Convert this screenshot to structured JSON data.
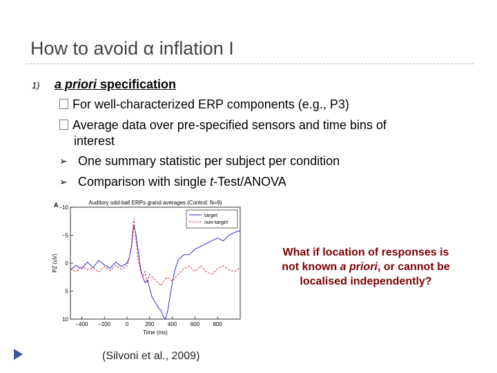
{
  "slide": {
    "title": "How to avoid α inflation I",
    "list_number": "1)",
    "heading_italic": "a priori",
    "heading_rest": " specification",
    "sub_bullet_1": "For well-characterized ERP components (e.g., P3)",
    "sub_bullet_2_line1": "Average data over pre-specified sensors and time bins of",
    "sub_bullet_2_line2": "interest",
    "arrow_bullet_1": "One summary statistic per subject per condition",
    "arrow_bullet_2_pre": "Comparison with single ",
    "arrow_bullet_2_ital": "t",
    "arrow_bullet_2_post": "-Test/ANOVA",
    "callout_line1": "What if location of responses is",
    "callout_line2_pre": "not known ",
    "callout_line2_ital": "a priori",
    "callout_line2_post": ", or cannot be",
    "callout_line3": "localised independently?",
    "citation": "(Silvoni et al., 2009)"
  },
  "chart_data": {
    "type": "line",
    "panel_label": "A",
    "title": "Auditory odd-ball ERPs grand averages (Control: N=9)",
    "xlabel": "Time (ms)",
    "ylabel": "PZ (uV)",
    "xlim": [
      -500,
      1000
    ],
    "ylim": [
      -10,
      10
    ],
    "y_inverted": true,
    "xticks": [
      -400,
      -200,
      0,
      200,
      400,
      600,
      800
    ],
    "xtick_labels": [
      "−400",
      "−200",
      "0",
      "200",
      "400",
      "600",
      "800"
    ],
    "yticks": [
      -10,
      -5,
      0,
      5,
      10
    ],
    "ytick_labels": [
      "−10",
      "−5",
      "0",
      "5",
      "10"
    ],
    "legend_position": "top-right",
    "series": [
      {
        "name": "target",
        "color": "#2b2bd0",
        "dash": false,
        "x": [
          -500,
          -450,
          -400,
          -350,
          -300,
          -250,
          -200,
          -150,
          -100,
          -50,
          0,
          20,
          40,
          60,
          80,
          100,
          120,
          140,
          160,
          180,
          200,
          220,
          250,
          280,
          300,
          320,
          340,
          360,
          380,
          400,
          420,
          450,
          500,
          550,
          600,
          650,
          700,
          750,
          800,
          850,
          900,
          950,
          1000
        ],
        "y": [
          1.2,
          0.4,
          1.0,
          -0.2,
          0.8,
          -0.5,
          0.3,
          0.9,
          -0.2,
          0.6,
          0.0,
          -1.0,
          -3.0,
          -6.8,
          -5.0,
          -2.0,
          1.0,
          2.5,
          3.5,
          3.0,
          4.5,
          6.0,
          7.0,
          8.0,
          8.5,
          9.5,
          10.0,
          8.5,
          6.0,
          3.5,
          1.5,
          -0.5,
          -1.5,
          -1.5,
          -2.5,
          -3.0,
          -3.5,
          -4.0,
          -4.5,
          -4.0,
          -5.0,
          -5.5,
          -5.8
        ]
      },
      {
        "name": "non-target",
        "color": "#d03030",
        "dash": true,
        "x": [
          -500,
          -450,
          -400,
          -350,
          -300,
          -250,
          -200,
          -150,
          -100,
          -50,
          0,
          20,
          40,
          60,
          80,
          100,
          120,
          140,
          160,
          180,
          200,
          250,
          300,
          350,
          400,
          450,
          500,
          550,
          600,
          650,
          700,
          750,
          800,
          850,
          900,
          950,
          1000
        ],
        "y": [
          1.0,
          1.5,
          0.5,
          1.2,
          0.8,
          1.6,
          0.6,
          1.3,
          0.4,
          1.1,
          0.5,
          -1.0,
          -3.5,
          -8.0,
          -4.0,
          -0.5,
          1.5,
          2.5,
          1.5,
          3.5,
          2.0,
          3.0,
          4.0,
          2.5,
          3.2,
          2.0,
          1.0,
          0.5,
          1.5,
          0.5,
          1.5,
          2.0,
          1.0,
          0.5,
          1.2,
          1.5,
          0.8
        ]
      }
    ]
  }
}
